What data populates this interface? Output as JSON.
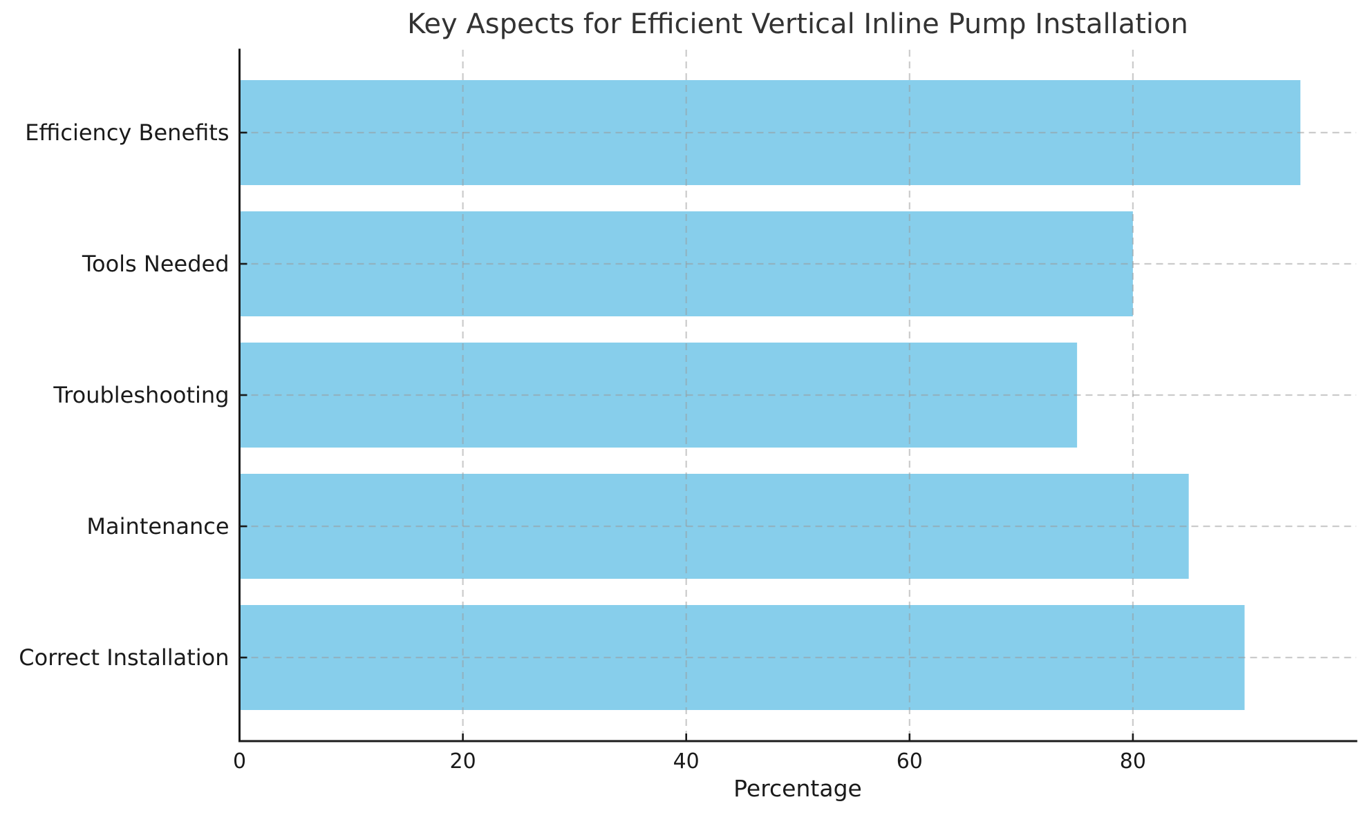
{
  "figure": {
    "background": "#ffffff"
  },
  "chart_data": {
    "type": "bar",
    "orientation": "horizontal",
    "title": "Key Aspects for Efficient Vertical Inline Pump Installation",
    "xlabel": "Percentage",
    "ylabel": "",
    "categories": [
      "Efficiency Benefits",
      "Tools Needed",
      "Troubleshooting",
      "Maintenance",
      "Correct Installation"
    ],
    "values": [
      95,
      80,
      75,
      85,
      90
    ],
    "xlim": [
      0,
      100
    ],
    "xticks": [
      0,
      20,
      40,
      60,
      80
    ],
    "xtick_labels": [
      "0",
      "20",
      "40",
      "60",
      "80"
    ],
    "bar_color": "#87CEEB",
    "axis_color": "#1a1a1a",
    "title_color": "#333333",
    "grid_color": "#999999",
    "grid_style": "dashed",
    "grid_axes": "both",
    "legend": "none",
    "background": "#ffffff"
  }
}
